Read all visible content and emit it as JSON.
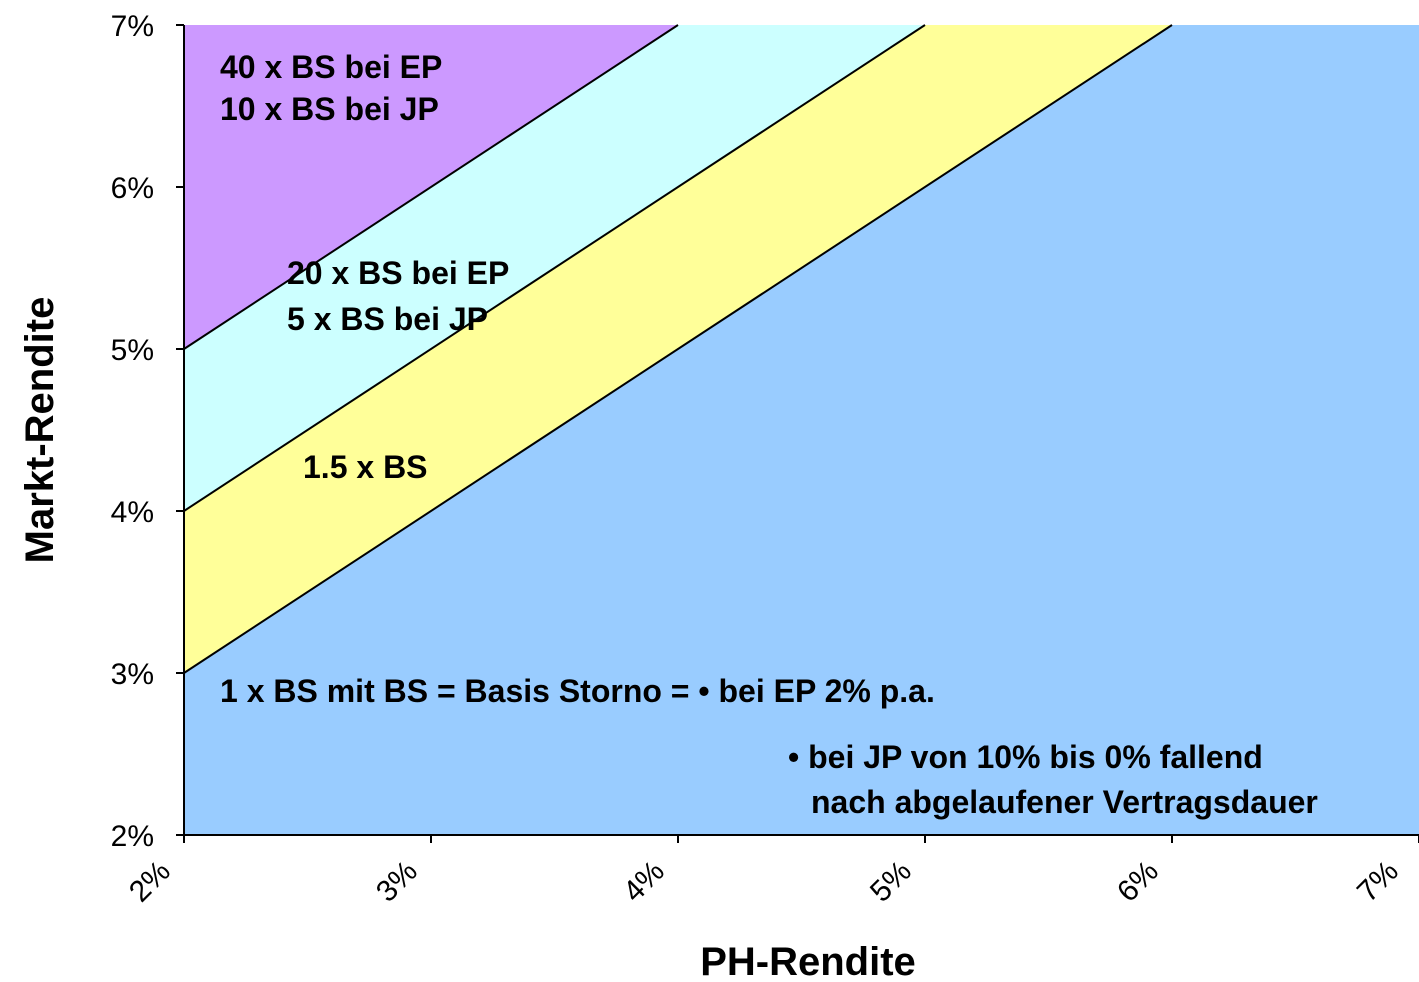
{
  "chart_data": {
    "type": "area",
    "title": "",
    "xlabel": "PH-Rendite",
    "ylabel": "Markt-Rendite",
    "xlim": [
      2,
      7
    ],
    "ylim": [
      2,
      7
    ],
    "x_ticks": [
      "2%",
      "3%",
      "4%",
      "5%",
      "6%",
      "7%"
    ],
    "y_ticks": [
      "2%",
      "3%",
      "4%",
      "5%",
      "6%",
      "7%"
    ],
    "boundary_offsets": [
      1,
      2,
      3
    ],
    "regions": [
      {
        "from_offset": null,
        "to_offset": 1,
        "color": "#99ccff"
      },
      {
        "from_offset": 1,
        "to_offset": 2,
        "color": "#ffff99"
      },
      {
        "from_offset": 2,
        "to_offset": 3,
        "color": "#ccffff"
      },
      {
        "from_offset": 3,
        "to_offset": null,
        "color": "#cc99ff"
      }
    ],
    "annotations": {
      "region4_line1": "40 x BS bei EP",
      "region4_line2": "10 x BS bei JP",
      "region3_line1": "20 x BS bei EP",
      "region3_line2": "5 x BS bei JP",
      "region2": "1.5 x BS",
      "region1": "1 x BS  mit BS = Basis Storno = • bei EP 2% p.a.",
      "note_line1": "• bei JP von 10% bis 0% fallend",
      "note_line2": "nach abgelaufener Vertragsdauer"
    }
  }
}
